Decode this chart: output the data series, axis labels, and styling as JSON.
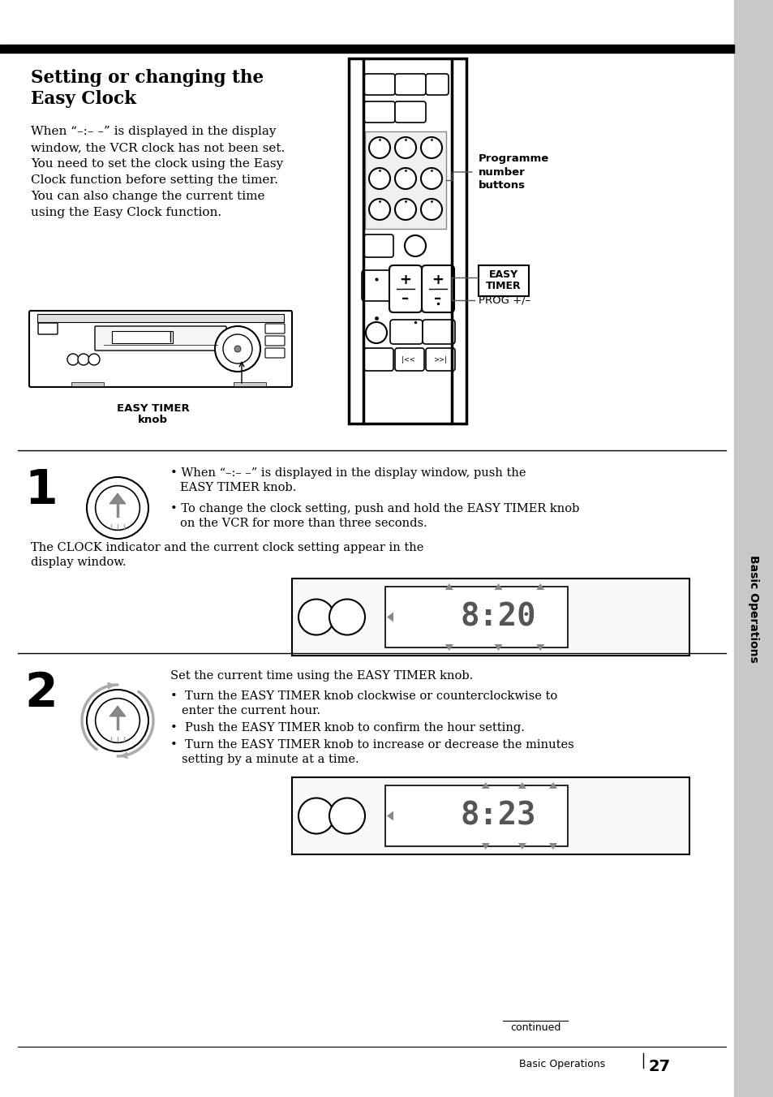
{
  "page_bg": "#ffffff",
  "sidebar_bg": "#c8c8c8",
  "top_bar_color": "#000000",
  "title": "Setting or changing the\nEasy Clock",
  "body_text": "When “–:– –” is displayed in the display\nwindow, the VCR clock has not been set.\nYou need to set the clock using the Easy\nClock function before setting the timer.\nYou can also change the current time\nusing the Easy Clock function.",
  "s1_bullet1": "When “–:– –” is displayed in the display window, push the\n    EASY TIMER knob.",
  "s1_bullet2": "To change the clock setting, push and hold the EASY TIMER knob\n    on the VCR for more than three seconds.",
  "s1_text3": "The CLOCK indicator and the current clock setting appear in the\ndisplay window.",
  "s2_intro": "Set the current time using the EASY TIMER knob.",
  "s2_step1": "Turn the EASY TIMER knob clockwise or counterclockwise to\nenter the current hour.",
  "s2_step2": "Push the EASY TIMER knob to confirm the hour setting.",
  "s2_step3": "Turn the EASY TIMER knob to increase or decrease the minutes\nsetting by a minute at a time.",
  "sidebar_text": "Basic Operations",
  "easy_timer_label1": "EASY TIMER",
  "easy_timer_label2": "knob",
  "prog_label": "Programme\nnumber\nbuttons",
  "easy_timer_box1": "EASY",
  "easy_timer_box2": "TIMER",
  "prog_pm_label": "PROG +/–"
}
